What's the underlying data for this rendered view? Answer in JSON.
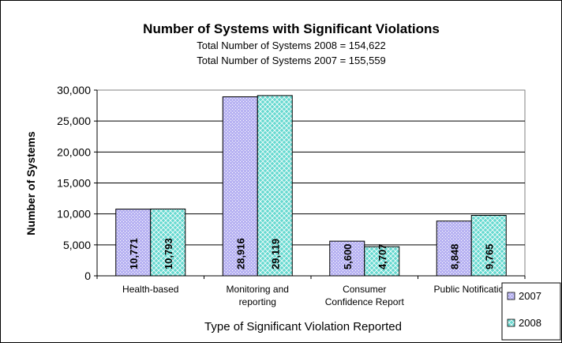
{
  "chart_data": {
    "type": "bar",
    "title": "Number of Systems with Significant Violations",
    "subtitle_lines": [
      "Total Number of Systems 2008 = 154,622",
      "Total Number of Systems 2007 = 155,559"
    ],
    "xlabel": "Type of Significant Violation Reported",
    "ylabel": "Number of  Systems",
    "categories": [
      [
        "Health-based"
      ],
      [
        "Monitoring and",
        "reporting"
      ],
      [
        "Consumer",
        "Confidence Report"
      ],
      [
        "Public Notification"
      ]
    ],
    "series": [
      {
        "name": "2007",
        "values": [
          10771,
          28916,
          5600,
          8848
        ],
        "value_labels": [
          "10,771",
          "28,916",
          "5,600",
          "8,848"
        ],
        "color": "#b8b3f2",
        "pattern": "dots"
      },
      {
        "name": "2008",
        "values": [
          10793,
          29119,
          4707,
          9765
        ],
        "value_labels": [
          "10,793",
          "29,119",
          "4,707",
          "9,765"
        ],
        "color": "#66d9d0",
        "pattern": "diamonds"
      }
    ],
    "ylim": [
      0,
      30000
    ],
    "yticks": [
      0,
      5000,
      10000,
      15000,
      20000,
      25000,
      30000
    ],
    "ytick_labels": [
      "0",
      "5,000",
      "10,000",
      "15,000",
      "20,000",
      "25,000",
      "30,000"
    ],
    "grid": true,
    "legend_position": "bottom-right"
  }
}
